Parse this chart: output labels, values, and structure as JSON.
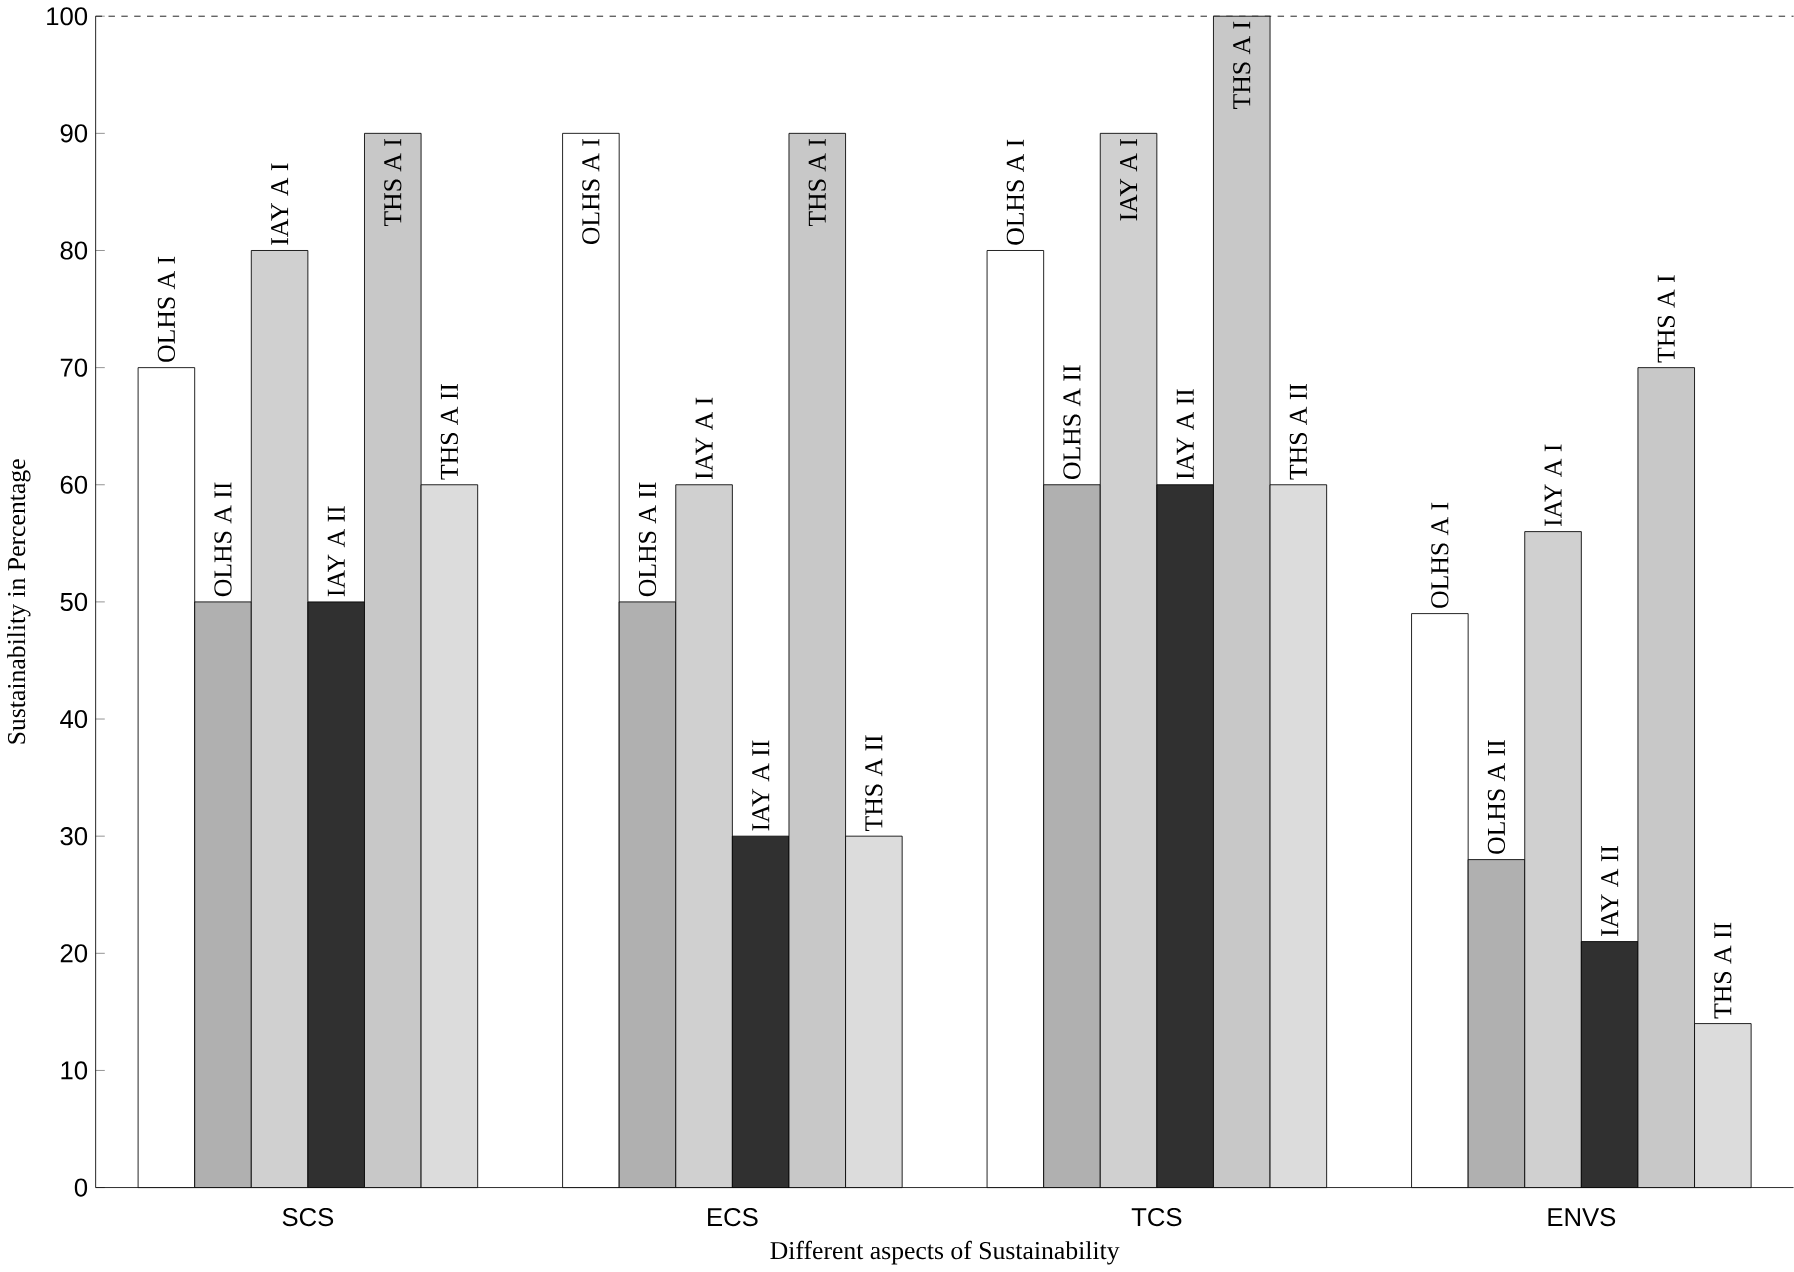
{
  "chart_data": {
    "type": "bar",
    "xlabel": "Different aspects of Sustainability",
    "ylabel": "Sustainability in Percentage",
    "categories": [
      "SCS",
      "ECS",
      "TCS",
      "ENVS"
    ],
    "series": [
      {
        "name": "OLHS A I",
        "color": "#ffffff",
        "values": [
          70,
          90,
          80,
          49
        ]
      },
      {
        "name": "OLHS A II",
        "color": "#b0b0b0",
        "values": [
          50,
          50,
          60,
          28
        ]
      },
      {
        "name": "IAY A I",
        "color": "#d0d0d0",
        "values": [
          80,
          60,
          90,
          56
        ]
      },
      {
        "name": "IAY A II",
        "color": "#303030",
        "values": [
          50,
          30,
          60,
          21
        ]
      },
      {
        "name": "THS A I",
        "color": "#c8c8c8",
        "values": [
          90,
          90,
          100,
          70
        ]
      },
      {
        "name": "THS A II",
        "color": "#dcdcdc",
        "values": [
          60,
          30,
          60,
          14
        ]
      }
    ],
    "ylim": [
      0,
      100
    ],
    "yticks": [
      0,
      10,
      20,
      30,
      40,
      50,
      60,
      70,
      80,
      90,
      100
    ],
    "grid": false
  }
}
